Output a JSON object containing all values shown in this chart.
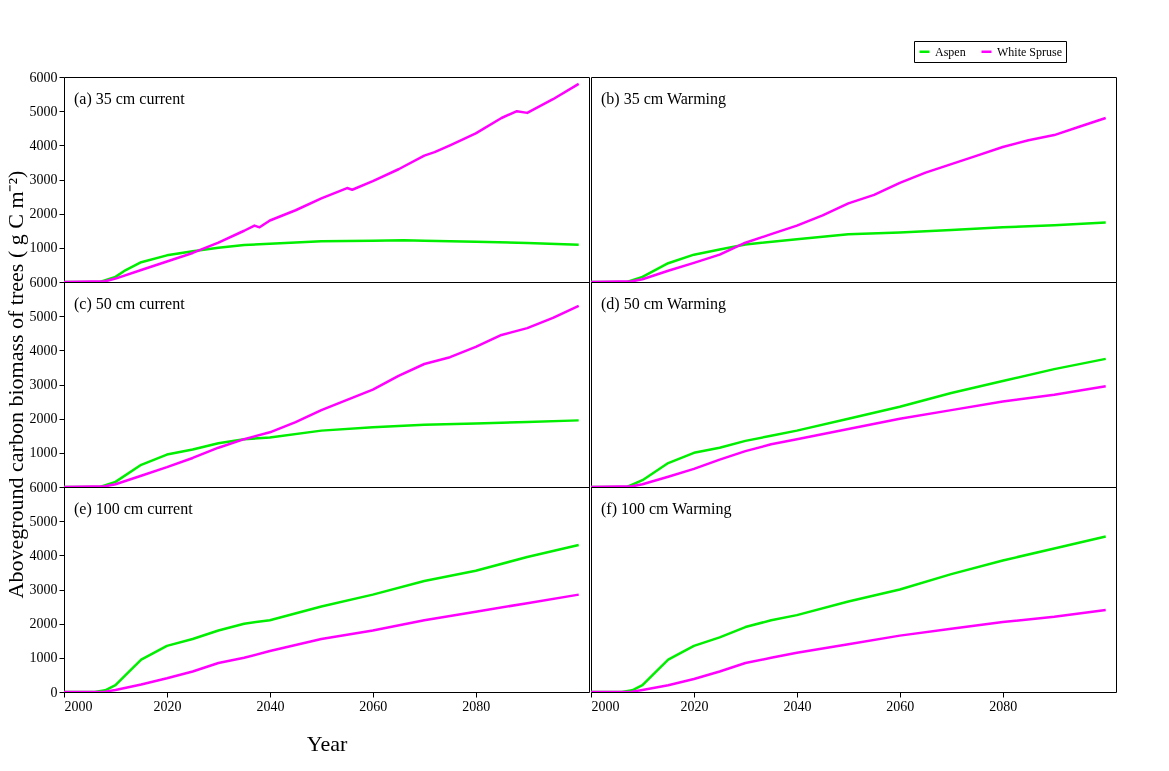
{
  "chart_data": [
    {
      "type": "line",
      "annotations": [
        "(a) 35 cm current"
      ],
      "xlim": [
        2000,
        2102
      ],
      "xticks": [
        2000,
        2020,
        2040,
        2060,
        2080
      ],
      "ylim": [
        0,
        6000
      ],
      "yticks": [
        1000,
        2000,
        3000,
        4000,
        5000,
        6000
      ],
      "tick_labels": "y",
      "legend": "top right",
      "series": [
        {
          "name": "Aspen",
          "color": "#00ee00",
          "x": [
            2000,
            2007,
            2010,
            2012,
            2015,
            2020,
            2025,
            2030,
            2035,
            2040,
            2050,
            2060,
            2066,
            2070,
            2080,
            2090,
            2100
          ],
          "values": [
            0,
            0,
            150,
            350,
            580,
            780,
            900,
            1000,
            1080,
            1120,
            1190,
            1210,
            1220,
            1210,
            1180,
            1140,
            1090
          ]
        },
        {
          "name": "White Spruse",
          "color": "#ff00ff",
          "x": [
            2000,
            2008,
            2010,
            2015,
            2020,
            2025,
            2030,
            2035,
            2037,
            2038,
            2040,
            2045,
            2050,
            2055,
            2056,
            2060,
            2065,
            2070,
            2072,
            2075,
            2080,
            2085,
            2088,
            2090,
            2095,
            2100
          ],
          "values": [
            0,
            20,
            100,
            350,
            600,
            850,
            1150,
            1500,
            1650,
            1600,
            1800,
            2100,
            2450,
            2750,
            2700,
            2950,
            3300,
            3700,
            3800,
            4000,
            4350,
            4800,
            5000,
            4950,
            5350,
            5800
          ]
        }
      ]
    },
    {
      "type": "line",
      "annotations": [
        "(b) 35 cm Warming"
      ],
      "xlim": [
        2000,
        2102
      ],
      "xticks": [
        2000,
        2020,
        2040,
        2060,
        2080
      ],
      "ylim": [
        0,
        6000
      ],
      "yticks": [
        1000,
        2000,
        3000,
        4000,
        5000,
        6000
      ],
      "tick_labels": false,
      "series": [
        {
          "name": "Aspen",
          "color": "#00ee00",
          "x": [
            2000,
            2007,
            2010,
            2015,
            2020,
            2025,
            2030,
            2040,
            2050,
            2060,
            2070,
            2080,
            2090,
            2100
          ],
          "values": [
            0,
            0,
            150,
            550,
            800,
            950,
            1100,
            1250,
            1400,
            1450,
            1520,
            1600,
            1660,
            1740
          ]
        },
        {
          "name": "White Spruse",
          "color": "#ff00ff",
          "x": [
            2000,
            2008,
            2010,
            2015,
            2020,
            2025,
            2030,
            2035,
            2040,
            2045,
            2050,
            2055,
            2060,
            2065,
            2070,
            2075,
            2080,
            2085,
            2090,
            2095,
            2100
          ],
          "values": [
            0,
            20,
            80,
            330,
            560,
            800,
            1150,
            1400,
            1650,
            1950,
            2300,
            2550,
            2900,
            3200,
            3450,
            3700,
            3950,
            4150,
            4300,
            4550,
            4800
          ]
        }
      ]
    },
    {
      "type": "line",
      "annotations": [
        "(c) 50 cm current"
      ],
      "ylabel": "Aboveground carbon biomass of trees ( g C m⁻²)",
      "xlim": [
        2000,
        2102
      ],
      "xticks": [
        2000,
        2020,
        2040,
        2060,
        2080
      ],
      "ylim": [
        0,
        6000
      ],
      "yticks": [
        1000,
        2000,
        3000,
        4000,
        5000,
        6000
      ],
      "tick_labels": "y",
      "series": [
        {
          "name": "Aspen",
          "color": "#00ee00",
          "x": [
            2000,
            2007,
            2010,
            2015,
            2020,
            2025,
            2030,
            2035,
            2040,
            2050,
            2060,
            2070,
            2080,
            2090,
            2100
          ],
          "values": [
            0,
            0,
            150,
            650,
            950,
            1100,
            1280,
            1400,
            1450,
            1650,
            1750,
            1820,
            1860,
            1900,
            1950
          ]
        },
        {
          "name": "White Spruse",
          "color": "#ff00ff",
          "x": [
            2000,
            2008,
            2010,
            2015,
            2020,
            2025,
            2030,
            2035,
            2040,
            2045,
            2050,
            2055,
            2060,
            2065,
            2070,
            2075,
            2080,
            2085,
            2090,
            2095,
            2100
          ],
          "values": [
            0,
            20,
            80,
            330,
            580,
            850,
            1150,
            1400,
            1600,
            1900,
            2250,
            2550,
            2850,
            3250,
            3600,
            3800,
            4100,
            4450,
            4650,
            4950,
            5300
          ]
        }
      ]
    },
    {
      "type": "line",
      "annotations": [
        "(d) 50 cm Warming"
      ],
      "xlim": [
        2000,
        2102
      ],
      "xticks": [
        2000,
        2020,
        2040,
        2060,
        2080
      ],
      "ylim": [
        0,
        6000
      ],
      "yticks": [
        1000,
        2000,
        3000,
        4000,
        5000,
        6000
      ],
      "tick_labels": false,
      "series": [
        {
          "name": "Aspen",
          "color": "#00ee00",
          "x": [
            2000,
            2007,
            2010,
            2015,
            2020,
            2025,
            2030,
            2035,
            2040,
            2050,
            2060,
            2070,
            2080,
            2090,
            2100
          ],
          "values": [
            0,
            0,
            200,
            700,
            1000,
            1150,
            1350,
            1500,
            1650,
            2000,
            2350,
            2750,
            3100,
            3450,
            3750
          ]
        },
        {
          "name": "White Spruse",
          "color": "#ff00ff",
          "x": [
            2000,
            2008,
            2010,
            2015,
            2020,
            2025,
            2030,
            2035,
            2040,
            2050,
            2060,
            2070,
            2080,
            2090,
            2100
          ],
          "values": [
            0,
            20,
            80,
            300,
            530,
            800,
            1050,
            1250,
            1400,
            1700,
            2000,
            2250,
            2500,
            2700,
            2950
          ]
        }
      ]
    },
    {
      "type": "line",
      "annotations": [
        "(e) 100 cm current"
      ],
      "xlabel": "Year",
      "xlim": [
        2000,
        2102
      ],
      "xticks": [
        2000,
        2020,
        2040,
        2060,
        2080
      ],
      "ylim": [
        0,
        6000
      ],
      "yticks": [
        0,
        1000,
        2000,
        3000,
        4000,
        5000,
        6000
      ],
      "series": [
        {
          "name": "Aspen",
          "color": "#00ee00",
          "x": [
            2000,
            2006,
            2008,
            2010,
            2012,
            2015,
            2020,
            2025,
            2030,
            2035,
            2040,
            2050,
            2060,
            2070,
            2080,
            2090,
            2100
          ],
          "values": [
            0,
            0,
            50,
            200,
            500,
            950,
            1350,
            1550,
            1800,
            2000,
            2100,
            2500,
            2850,
            3250,
            3550,
            3950,
            4300
          ]
        },
        {
          "name": "White Spruse",
          "color": "#ff00ff",
          "x": [
            2000,
            2008,
            2010,
            2015,
            2020,
            2025,
            2030,
            2035,
            2040,
            2050,
            2060,
            2070,
            2080,
            2090,
            2100
          ],
          "values": [
            0,
            10,
            60,
            220,
            400,
            600,
            850,
            1000,
            1200,
            1550,
            1800,
            2100,
            2350,
            2600,
            2850
          ]
        }
      ]
    },
    {
      "type": "line",
      "annotations": [
        "(f) 100 cm Warming"
      ],
      "xlim": [
        2000,
        2102
      ],
      "xticks": [
        2000,
        2020,
        2040,
        2060,
        2080
      ],
      "ylim": [
        0,
        6000
      ],
      "yticks": [
        0,
        1000,
        2000,
        3000,
        4000,
        5000,
        6000
      ],
      "tick_labels": "x",
      "series": [
        {
          "name": "Aspen",
          "color": "#00ee00",
          "x": [
            2000,
            2006,
            2008,
            2010,
            2012,
            2015,
            2020,
            2025,
            2030,
            2035,
            2040,
            2050,
            2060,
            2070,
            2080,
            2090,
            2100
          ],
          "values": [
            0,
            0,
            50,
            200,
            500,
            950,
            1350,
            1600,
            1900,
            2100,
            2250,
            2650,
            3000,
            3450,
            3850,
            4200,
            4550
          ]
        },
        {
          "name": "White Spruse",
          "color": "#ff00ff",
          "x": [
            2000,
            2008,
            2010,
            2015,
            2020,
            2025,
            2030,
            2035,
            2040,
            2050,
            2060,
            2070,
            2080,
            2090,
            2100
          ],
          "values": [
            0,
            10,
            60,
            200,
            380,
            600,
            850,
            1000,
            1150,
            1400,
            1650,
            1850,
            2050,
            2200,
            2400
          ]
        }
      ]
    }
  ]
}
